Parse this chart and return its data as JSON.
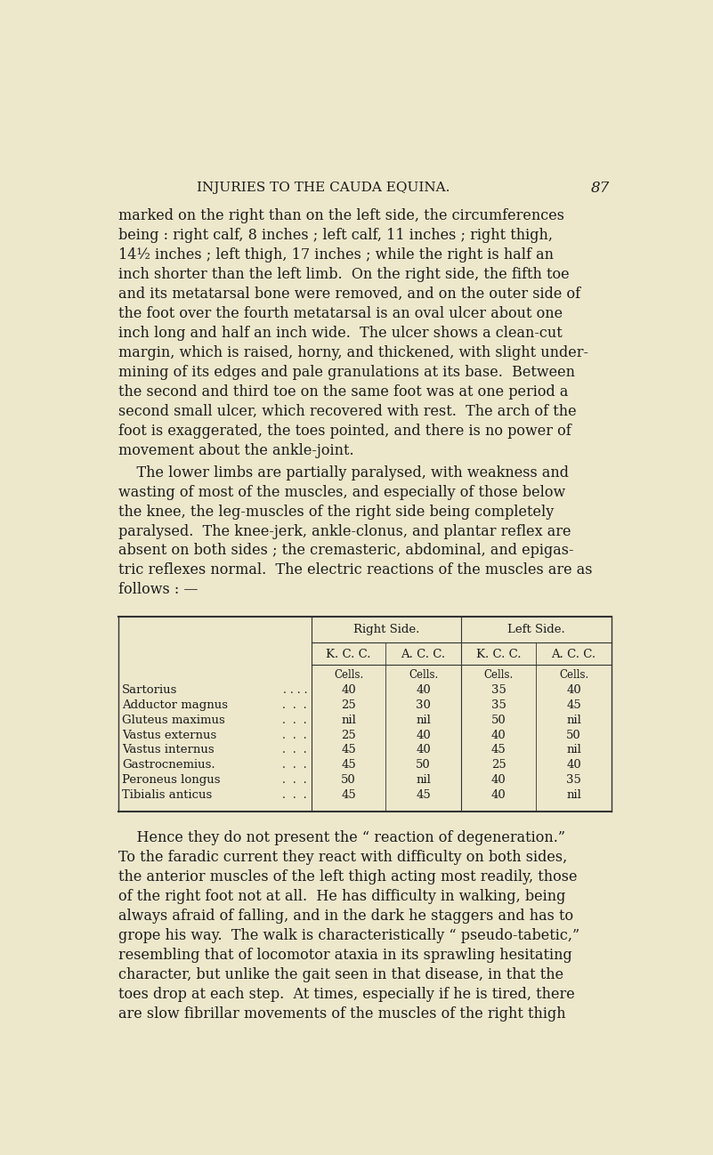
{
  "bg_color": "#ede8cc",
  "text_color": "#1c1c1c",
  "page_title": "INJURIES TO THE CAUDA EQUINA.",
  "page_number": "87",
  "para1_lines": [
    "marked on the right than on the left side, the circumferences",
    "being : right calf, 8 inches ; left calf, 11 inches ; right thigh,",
    "14½ inches ; left thigh, 17 inches ; while the right is half an",
    "inch shorter than the left limb.  On the right side, the fifth toe",
    "and its metatarsal bone were removed, and on the outer side of",
    "the foot over the fourth metatarsal is an oval ulcer about one",
    "inch long and half an inch wide.  The ulcer shows a clean-cut",
    "margin, which is raised, horny, and thickened, with slight under-",
    "mining of its edges and pale granulations at its base.  Between",
    "the second and third toe on the same foot was at one period a",
    "second small ulcer, which recovered with rest.  The arch of the",
    "foot is exaggerated, the toes pointed, and there is no power of",
    "movement about the ankle-joint."
  ],
  "para2_lines": [
    "    The lower limbs are partially paralysed, with weakness and",
    "wasting of most of the muscles, and especially of those below",
    "the knee, the leg-muscles of the right side being completely",
    "paralysed.  The knee-jerk, ankle-clonus, and plantar reflex are",
    "absent on both sides ; the cremasteric, abdominal, and epigas-",
    "tric reflexes normal.  The electric reactions of the muscles are as",
    "follows : —"
  ],
  "table_header1": "Right Side.",
  "table_header2": "Left Side.",
  "col_headers": [
    "K. C. C.",
    "A. C. C.",
    "K. C. C.",
    "A. C. C."
  ],
  "muscles": [
    "Sartorius",
    "Adductor magnus",
    "Gluteus maximus",
    "Vastus externus",
    "Vastus internus",
    "Gastrocnemius.",
    "Peroneus longus",
    "Tibialis anticus"
  ],
  "muscle_dots": [
    ". . . .",
    ".  .  .",
    ".  .  .",
    ".  .  .",
    ".  .  .",
    ".  .  .",
    ".  .  .",
    ".  .  ."
  ],
  "values": [
    [
      "40",
      "40",
      "35",
      "40"
    ],
    [
      "25",
      "30",
      "35",
      "45"
    ],
    [
      "nil",
      "nil",
      "50",
      "nil"
    ],
    [
      "25",
      "40",
      "40",
      "50"
    ],
    [
      "45",
      "40",
      "45",
      "nil"
    ],
    [
      "45",
      "50",
      "25",
      "40"
    ],
    [
      "50",
      "nil",
      "40",
      "35"
    ],
    [
      "45",
      "45",
      "40",
      "nil"
    ]
  ],
  "para3_lines": [
    "    Hence they do not present the “ reaction of degeneration.”",
    "To the faradic current they react with difficulty on both sides,",
    "the anterior muscles of the left thigh acting most readily, those",
    "of the right foot not at all.  He has difficulty in walking, being",
    "always afraid of falling, and in the dark he staggers and has to",
    "grope his way.  The walk is characteristically “ pseudo-tabetic,”",
    "resembling that of locomotor ataxia in its sprawling hesitating",
    "character, but unlike the gait seen in that disease, in that the",
    "toes drop at each step.  At times, especially if he is tired, there",
    "are slow fibrillar movements of the muscles of the right thigh"
  ]
}
